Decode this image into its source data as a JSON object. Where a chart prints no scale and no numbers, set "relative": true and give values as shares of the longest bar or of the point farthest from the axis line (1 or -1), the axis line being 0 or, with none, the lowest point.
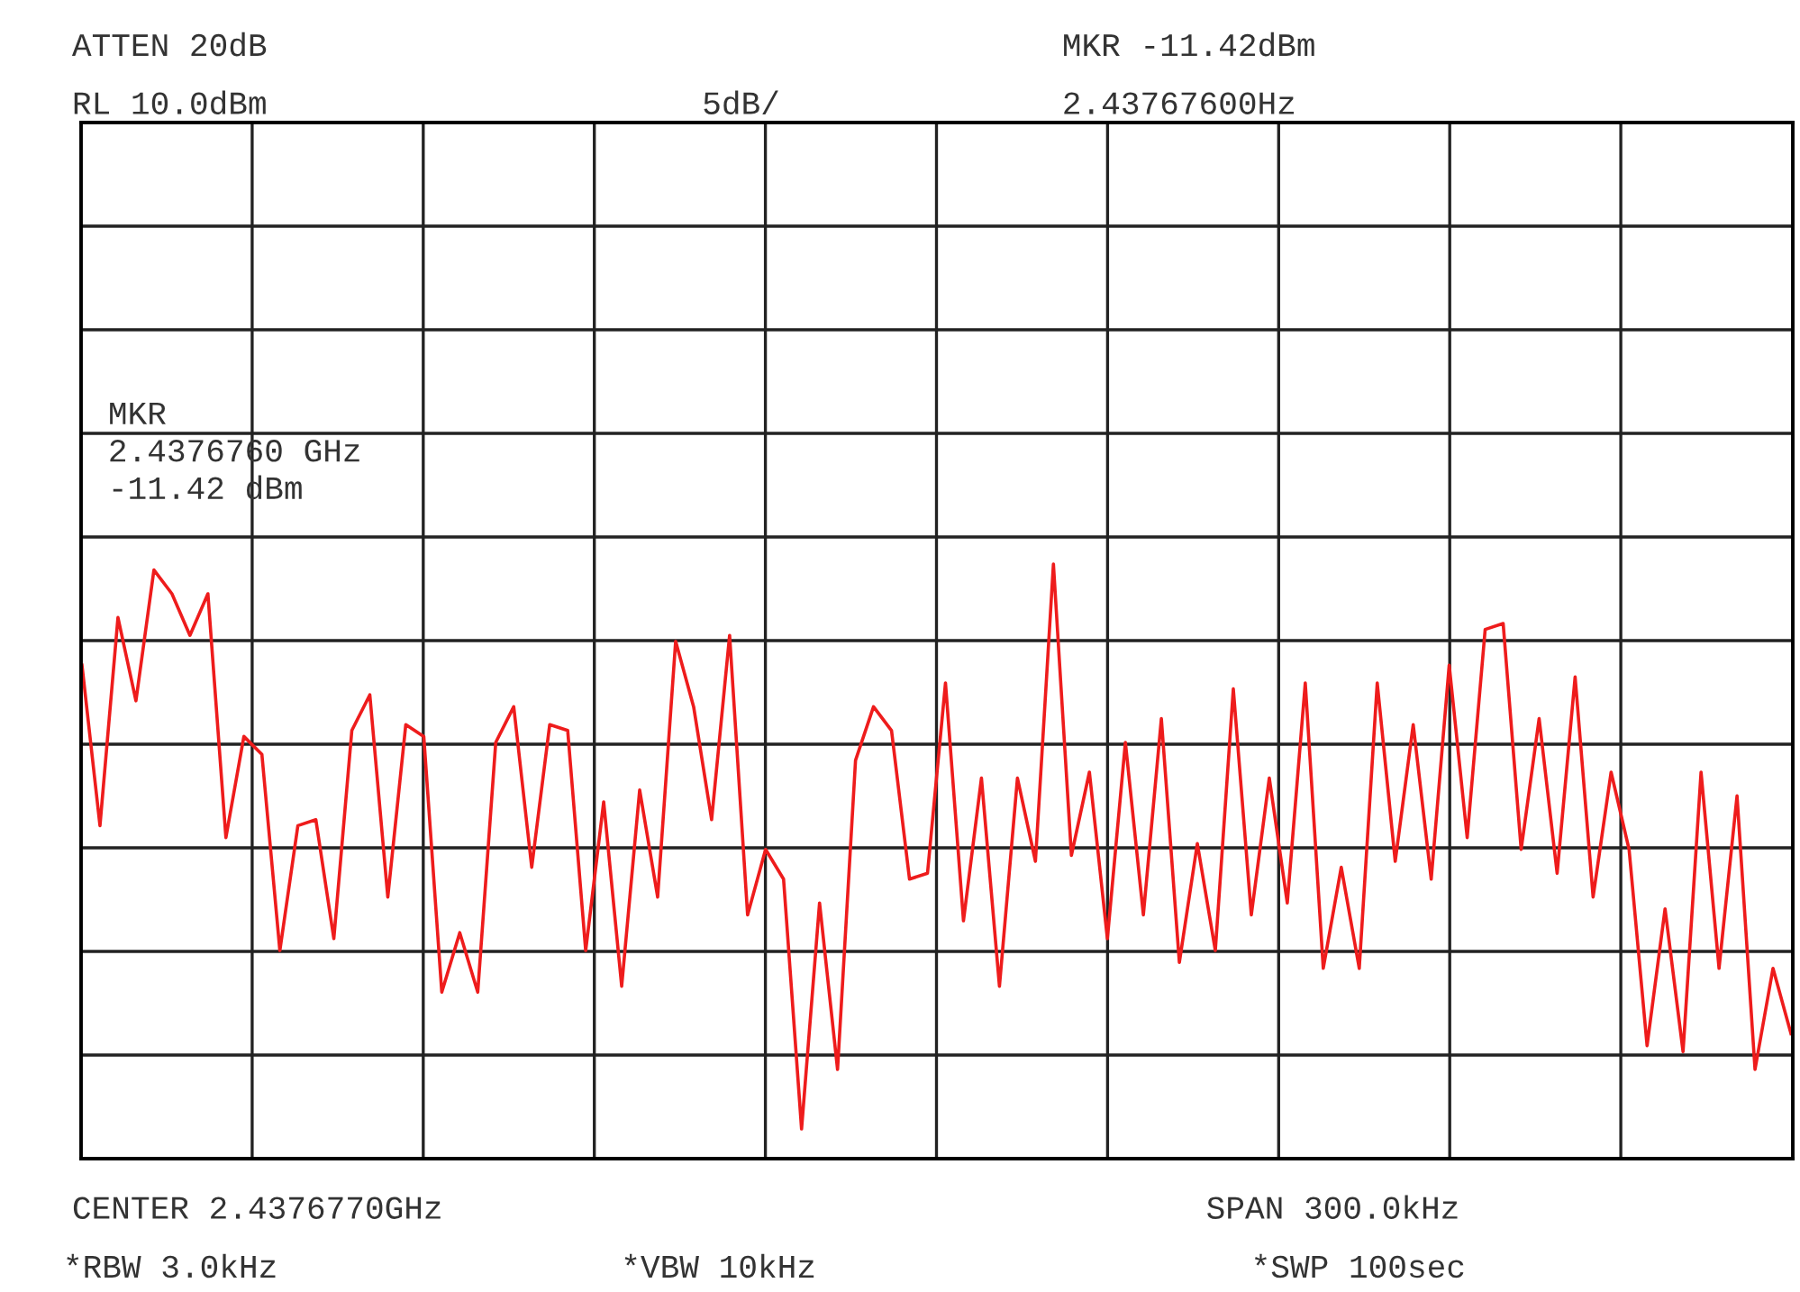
{
  "chart_data": {
    "type": "line",
    "relative": true,
    "grid": true,
    "marker": "none",
    "line_style": "solid",
    "categories": [
      null,
      null,
      null,
      null,
      null,
      null,
      null,
      null,
      null,
      null,
      null,
      null,
      null,
      null,
      null,
      null,
      null,
      null,
      null,
      null,
      null,
      null,
      null,
      null,
      null,
      null,
      null,
      null,
      null,
      null,
      null,
      null,
      null,
      null,
      null,
      null,
      null,
      null,
      null,
      null,
      null,
      null,
      null,
      null,
      null,
      null,
      null,
      null,
      null,
      null,
      null,
      null,
      null,
      null,
      null,
      null,
      null,
      null,
      null,
      null,
      null,
      null,
      null,
      null,
      null,
      null,
      null,
      null,
      null,
      null,
      null,
      null,
      null,
      null,
      null,
      null,
      null,
      null,
      null,
      null,
      null,
      null,
      null,
      null,
      null,
      null,
      null,
      null,
      null,
      null,
      null,
      null,
      null,
      null,
      null,
      null
    ],
    "series": [
      {
        "color": "#ee1c1c",
        "values": [
          0.83,
          0.56,
          0.91,
          0.77,
          0.99,
          0.95,
          0.88,
          0.95,
          0.54,
          0.71,
          0.68,
          0.35,
          0.56,
          0.57,
          0.37,
          0.72,
          0.78,
          0.44,
          0.73,
          0.71,
          0.28,
          0.38,
          0.28,
          0.7,
          0.76,
          0.49,
          0.73,
          0.72,
          0.35,
          0.6,
          0.29,
          0.62,
          0.44,
          0.87,
          0.76,
          0.57,
          0.88,
          0.41,
          0.52,
          0.47,
          0.05,
          0.43,
          0.15,
          0.67,
          0.76,
          0.72,
          0.47,
          0.48,
          0.8,
          0.4,
          0.64,
          0.29,
          0.64,
          0.5,
          1,
          0.51,
          0.65,
          0.37,
          0.7,
          0.41,
          0.74,
          0.33,
          0.53,
          0.35,
          0.79,
          0.41,
          0.64,
          0.43,
          0.8,
          0.32,
          0.49,
          0.32,
          0.8,
          0.5,
          0.73,
          0.47,
          0.83,
          0.54,
          0.89,
          0.9,
          0.52,
          0.74,
          0.48,
          0.81,
          0.44,
          0.65,
          0.52,
          0.19,
          0.42,
          0.18,
          0.65,
          0.32,
          0.61,
          0.15,
          0.32,
          0.21
        ]
      }
    ],
    "annotations": [
      "ATTEN 20dB",
      "RL 10.0dBm",
      "5dB/",
      "MKR -11.42dBm",
      "2.43767600Hz",
      "MKR\n2.4376760 GHz\n-11.42 dBm",
      "CENTER 2.4376770GHz",
      "SPAN 300.0kHz",
      "*RBW 3.0kHz",
      "*VBW 10kHz",
      "*SWP 100sec"
    ]
  }
}
